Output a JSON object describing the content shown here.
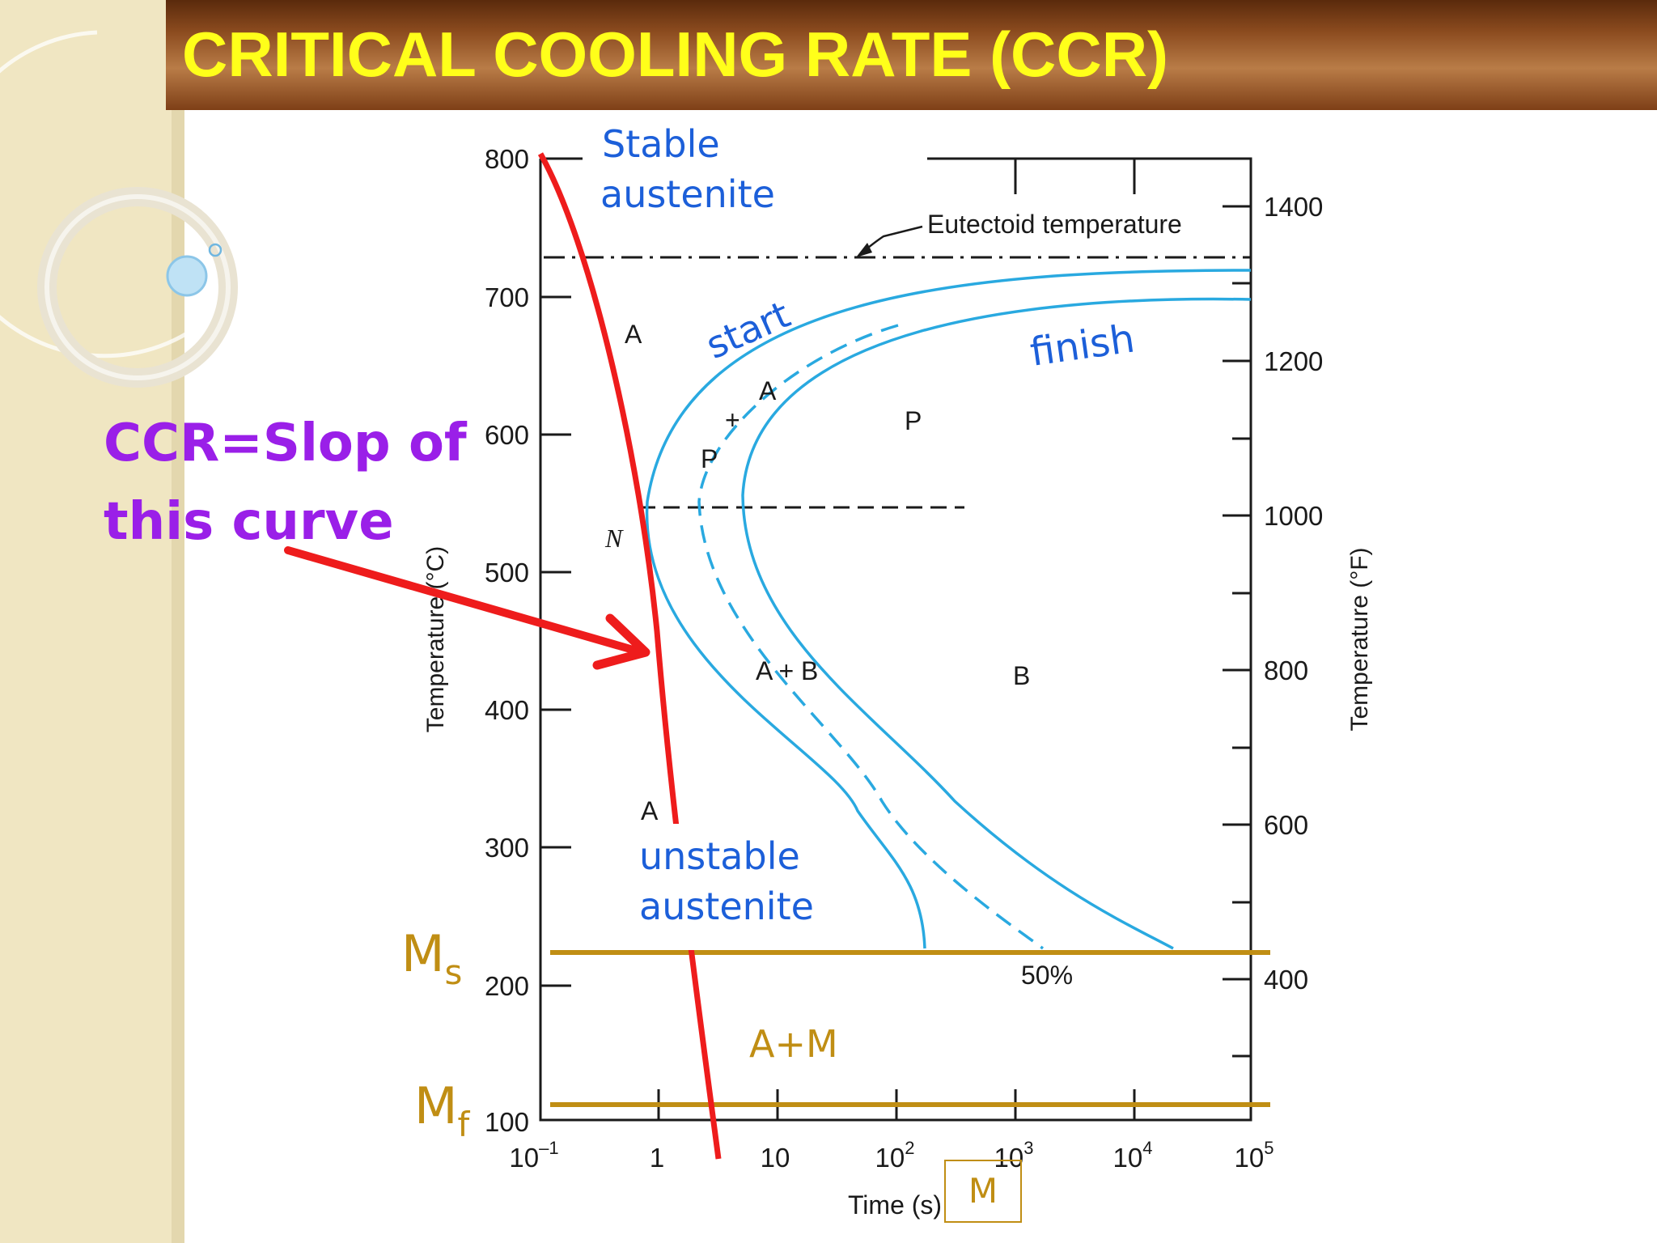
{
  "slide": {
    "title": "CRITICAL COOLING RATE (CCR)",
    "annotation_line1": "CCR=Slop of",
    "annotation_line2": "this curve"
  },
  "diagram": {
    "left_axis": {
      "label": "Temperature (°C)",
      "ticks": [
        "800",
        "700",
        "600",
        "500",
        "400",
        "300",
        "200",
        "100"
      ]
    },
    "right_axis": {
      "label": "Temperature (°F)",
      "ticks": [
        "1400",
        "1200",
        "1000",
        "800",
        "600",
        "400"
      ]
    },
    "x_axis": {
      "label": "Time (s)",
      "ticks": [
        {
          "base": "10",
          "exp": "–1"
        },
        {
          "base": "1",
          "exp": ""
        },
        {
          "base": "10",
          "exp": ""
        },
        {
          "base": "10",
          "exp": "2"
        },
        {
          "base": "10",
          "exp": "3"
        },
        {
          "base": "10",
          "exp": "4"
        },
        {
          "base": "10",
          "exp": "5"
        }
      ]
    },
    "eutectoid_label": "Eutectoid temperature",
    "region_labels": {
      "a_upper": "A",
      "a_plus": "A",
      "plus": "+",
      "p_small": "P",
      "p_region": "P",
      "n_label": "N",
      "a_plus_b": "A + B",
      "b_region": "B",
      "a_lower": "A",
      "fifty_pct": "50%"
    },
    "handwritten": {
      "stable_1": "Stable",
      "stable_2": "austenite",
      "start": "start",
      "finish": "finish",
      "unstable_1": "unstable",
      "unstable_2": "austenite",
      "ms_base": "M",
      "ms_sub": "s",
      "mf_base": "M",
      "mf_sub": "f",
      "a_plus_m": "A+M",
      "m_box": "M"
    },
    "colors": {
      "curve_blue": "#29a9e0",
      "cooling_red": "#ee1c1c",
      "gold_lines": "#c08e14",
      "handwriting_blue": "#1c5fd9",
      "ccr_purple": "#9a1fe8",
      "title_yellow": "#ffff1a"
    }
  }
}
